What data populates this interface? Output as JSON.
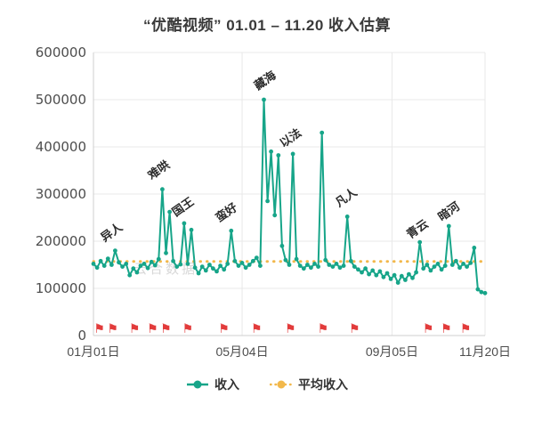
{
  "title": "“优酷视频” 01.01 – 11.20 收入估算",
  "watermark": "云合数据",
  "legend": {
    "items": [
      {
        "label": "收入",
        "color": "#17a589",
        "style": "solid"
      },
      {
        "label": "平均收入",
        "color": "#f2b84b",
        "style": "dotted"
      }
    ]
  },
  "colors": {
    "line": "#17a589",
    "average": "#f2b84b",
    "flag": "#e23b3b",
    "annotation": "#2b2b2b",
    "axis_text": "#4d4d4d",
    "grid": "#e8e8e8",
    "axis_line": "#cfcfcf",
    "watermark": "#d8d8d8"
  },
  "chart_data": {
    "type": "line",
    "title": "“优酷视频” 01.01 – 11.20 收入估算",
    "xlabel": "",
    "ylabel": "",
    "x_unit": "day of year (01月01日 = 0)",
    "ylim": [
      0,
      600000
    ],
    "xlim": [
      0,
      324
    ],
    "grid": true,
    "legend_position": "bottom",
    "y_ticks": [
      0,
      100000,
      200000,
      300000,
      400000,
      500000,
      600000
    ],
    "x_ticks": [
      {
        "day": 0,
        "label": "01月01日"
      },
      {
        "day": 123,
        "label": "05月04日"
      },
      {
        "day": 247,
        "label": "09月05日"
      },
      {
        "day": 324,
        "label": "11月20日"
      }
    ],
    "series": [
      {
        "name": "收入",
        "color": "#17a589",
        "points": [
          [
            0,
            152000
          ],
          [
            3,
            144000
          ],
          [
            6,
            158000
          ],
          [
            9,
            148000
          ],
          [
            12,
            163000
          ],
          [
            15,
            150000
          ],
          [
            18,
            180000
          ],
          [
            21,
            155000
          ],
          [
            24,
            146000
          ],
          [
            27,
            152000
          ],
          [
            30,
            128000
          ],
          [
            33,
            142000
          ],
          [
            36,
            134000
          ],
          [
            39,
            148000
          ],
          [
            42,
            152000
          ],
          [
            45,
            143000
          ],
          [
            48,
            156000
          ],
          [
            51,
            149000
          ],
          [
            54,
            162000
          ],
          [
            57,
            310000
          ],
          [
            60,
            175000
          ],
          [
            63,
            262000
          ],
          [
            66,
            158000
          ],
          [
            69,
            146000
          ],
          [
            72,
            151000
          ],
          [
            75,
            238000
          ],
          [
            78,
            152000
          ],
          [
            81,
            224000
          ],
          [
            84,
            144000
          ],
          [
            87,
            132000
          ],
          [
            90,
            146000
          ],
          [
            93,
            138000
          ],
          [
            96,
            150000
          ],
          [
            99,
            142000
          ],
          [
            102,
            136000
          ],
          [
            105,
            148000
          ],
          [
            108,
            140000
          ],
          [
            111,
            152000
          ],
          [
            114,
            222000
          ],
          [
            117,
            158000
          ],
          [
            120,
            148000
          ],
          [
            123,
            154000
          ],
          [
            126,
            144000
          ],
          [
            129,
            150000
          ],
          [
            132,
            158000
          ],
          [
            135,
            165000
          ],
          [
            138,
            148000
          ],
          [
            141,
            500000
          ],
          [
            144,
            285000
          ],
          [
            147,
            390000
          ],
          [
            150,
            255000
          ],
          [
            153,
            382000
          ],
          [
            156,
            190000
          ],
          [
            159,
            160000
          ],
          [
            162,
            150000
          ],
          [
            165,
            385000
          ],
          [
            168,
            162000
          ],
          [
            171,
            148000
          ],
          [
            174,
            142000
          ],
          [
            177,
            150000
          ],
          [
            180,
            144000
          ],
          [
            183,
            152000
          ],
          [
            186,
            146000
          ],
          [
            189,
            430000
          ],
          [
            192,
            160000
          ],
          [
            195,
            150000
          ],
          [
            198,
            146000
          ],
          [
            201,
            152000
          ],
          [
            204,
            144000
          ],
          [
            207,
            148000
          ],
          [
            210,
            252000
          ],
          [
            213,
            158000
          ],
          [
            216,
            146000
          ],
          [
            219,
            140000
          ],
          [
            222,
            134000
          ],
          [
            225,
            142000
          ],
          [
            228,
            130000
          ],
          [
            231,
            138000
          ],
          [
            234,
            128000
          ],
          [
            237,
            136000
          ],
          [
            240,
            124000
          ],
          [
            243,
            132000
          ],
          [
            246,
            120000
          ],
          [
            249,
            128000
          ],
          [
            252,
            112000
          ],
          [
            255,
            126000
          ],
          [
            258,
            118000
          ],
          [
            261,
            130000
          ],
          [
            264,
            122000
          ],
          [
            267,
            134000
          ],
          [
            270,
            198000
          ],
          [
            273,
            142000
          ],
          [
            276,
            150000
          ],
          [
            279,
            138000
          ],
          [
            282,
            146000
          ],
          [
            285,
            152000
          ],
          [
            288,
            140000
          ],
          [
            291,
            148000
          ],
          [
            294,
            232000
          ],
          [
            297,
            150000
          ],
          [
            300,
            158000
          ],
          [
            303,
            144000
          ],
          [
            306,
            152000
          ],
          [
            309,
            146000
          ],
          [
            312,
            154000
          ],
          [
            315,
            186000
          ],
          [
            318,
            98000
          ],
          [
            321,
            92000
          ],
          [
            324,
            90000
          ]
        ]
      },
      {
        "name": "平均收入",
        "color": "#f2b84b",
        "type": "constant",
        "value": 157000
      }
    ],
    "annotations": [
      {
        "text": "异人",
        "day": 9,
        "value": 198000
      },
      {
        "text": "难哄",
        "day": 48,
        "value": 330000
      },
      {
        "text": "国王",
        "day": 68,
        "value": 252000
      },
      {
        "text": "蛮好",
        "day": 104,
        "value": 240000
      },
      {
        "text": "藏海",
        "day": 136,
        "value": 520000
      },
      {
        "text": "以法",
        "day": 157,
        "value": 398000
      },
      {
        "text": "凡人",
        "day": 203,
        "value": 272000
      },
      {
        "text": "青云",
        "day": 262,
        "value": 205000
      },
      {
        "text": "暗河",
        "day": 288,
        "value": 242000
      }
    ],
    "flag_markers_days": [
      4,
      15,
      33,
      48,
      59,
      77,
      107,
      134,
      162,
      189,
      215,
      276,
      291,
      307
    ]
  }
}
